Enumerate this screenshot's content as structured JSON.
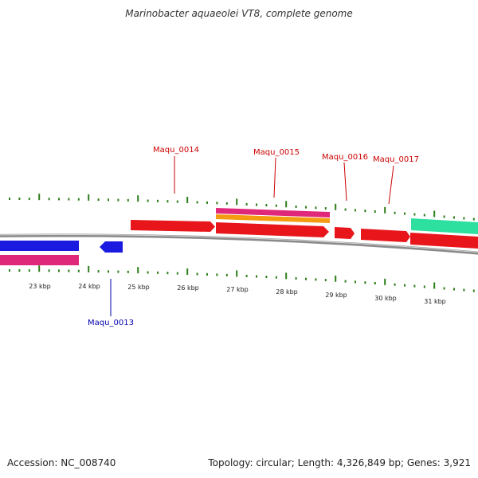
{
  "title": "Marinobacter aquaeolei VT8, complete genome",
  "footer": {
    "accession": "Accession: NC_008740",
    "summary": "Topology: circular; Length: 4,326,849 bp; Genes: 3,921"
  },
  "colors": {
    "tick": "#2e7d1a",
    "backbone": "#8a8a8a",
    "forward_gene": "#e8161b",
    "reverse_gene": "#1a1ae0",
    "magenta": "#e0287a",
    "orange": "#f39c12",
    "teal": "#2ee0a0",
    "label_forward": "#cc0000",
    "label_reverse": "#0000aa"
  },
  "axis": {
    "ticks": [
      "23 kbp",
      "24 kbp",
      "25 kbp",
      "26 kbp",
      "27 kbp",
      "28 kbp",
      "29 kbp",
      "30 kbp",
      "31 kbp"
    ]
  },
  "gene_labels": [
    {
      "name": "Maqu_0013",
      "strand": "reverse"
    },
    {
      "name": "Maqu_0014",
      "strand": "forward"
    },
    {
      "name": "Maqu_0015",
      "strand": "forward"
    },
    {
      "name": "Maqu_0016",
      "strand": "forward"
    },
    {
      "name": "Maqu_0017",
      "strand": "forward"
    }
  ]
}
